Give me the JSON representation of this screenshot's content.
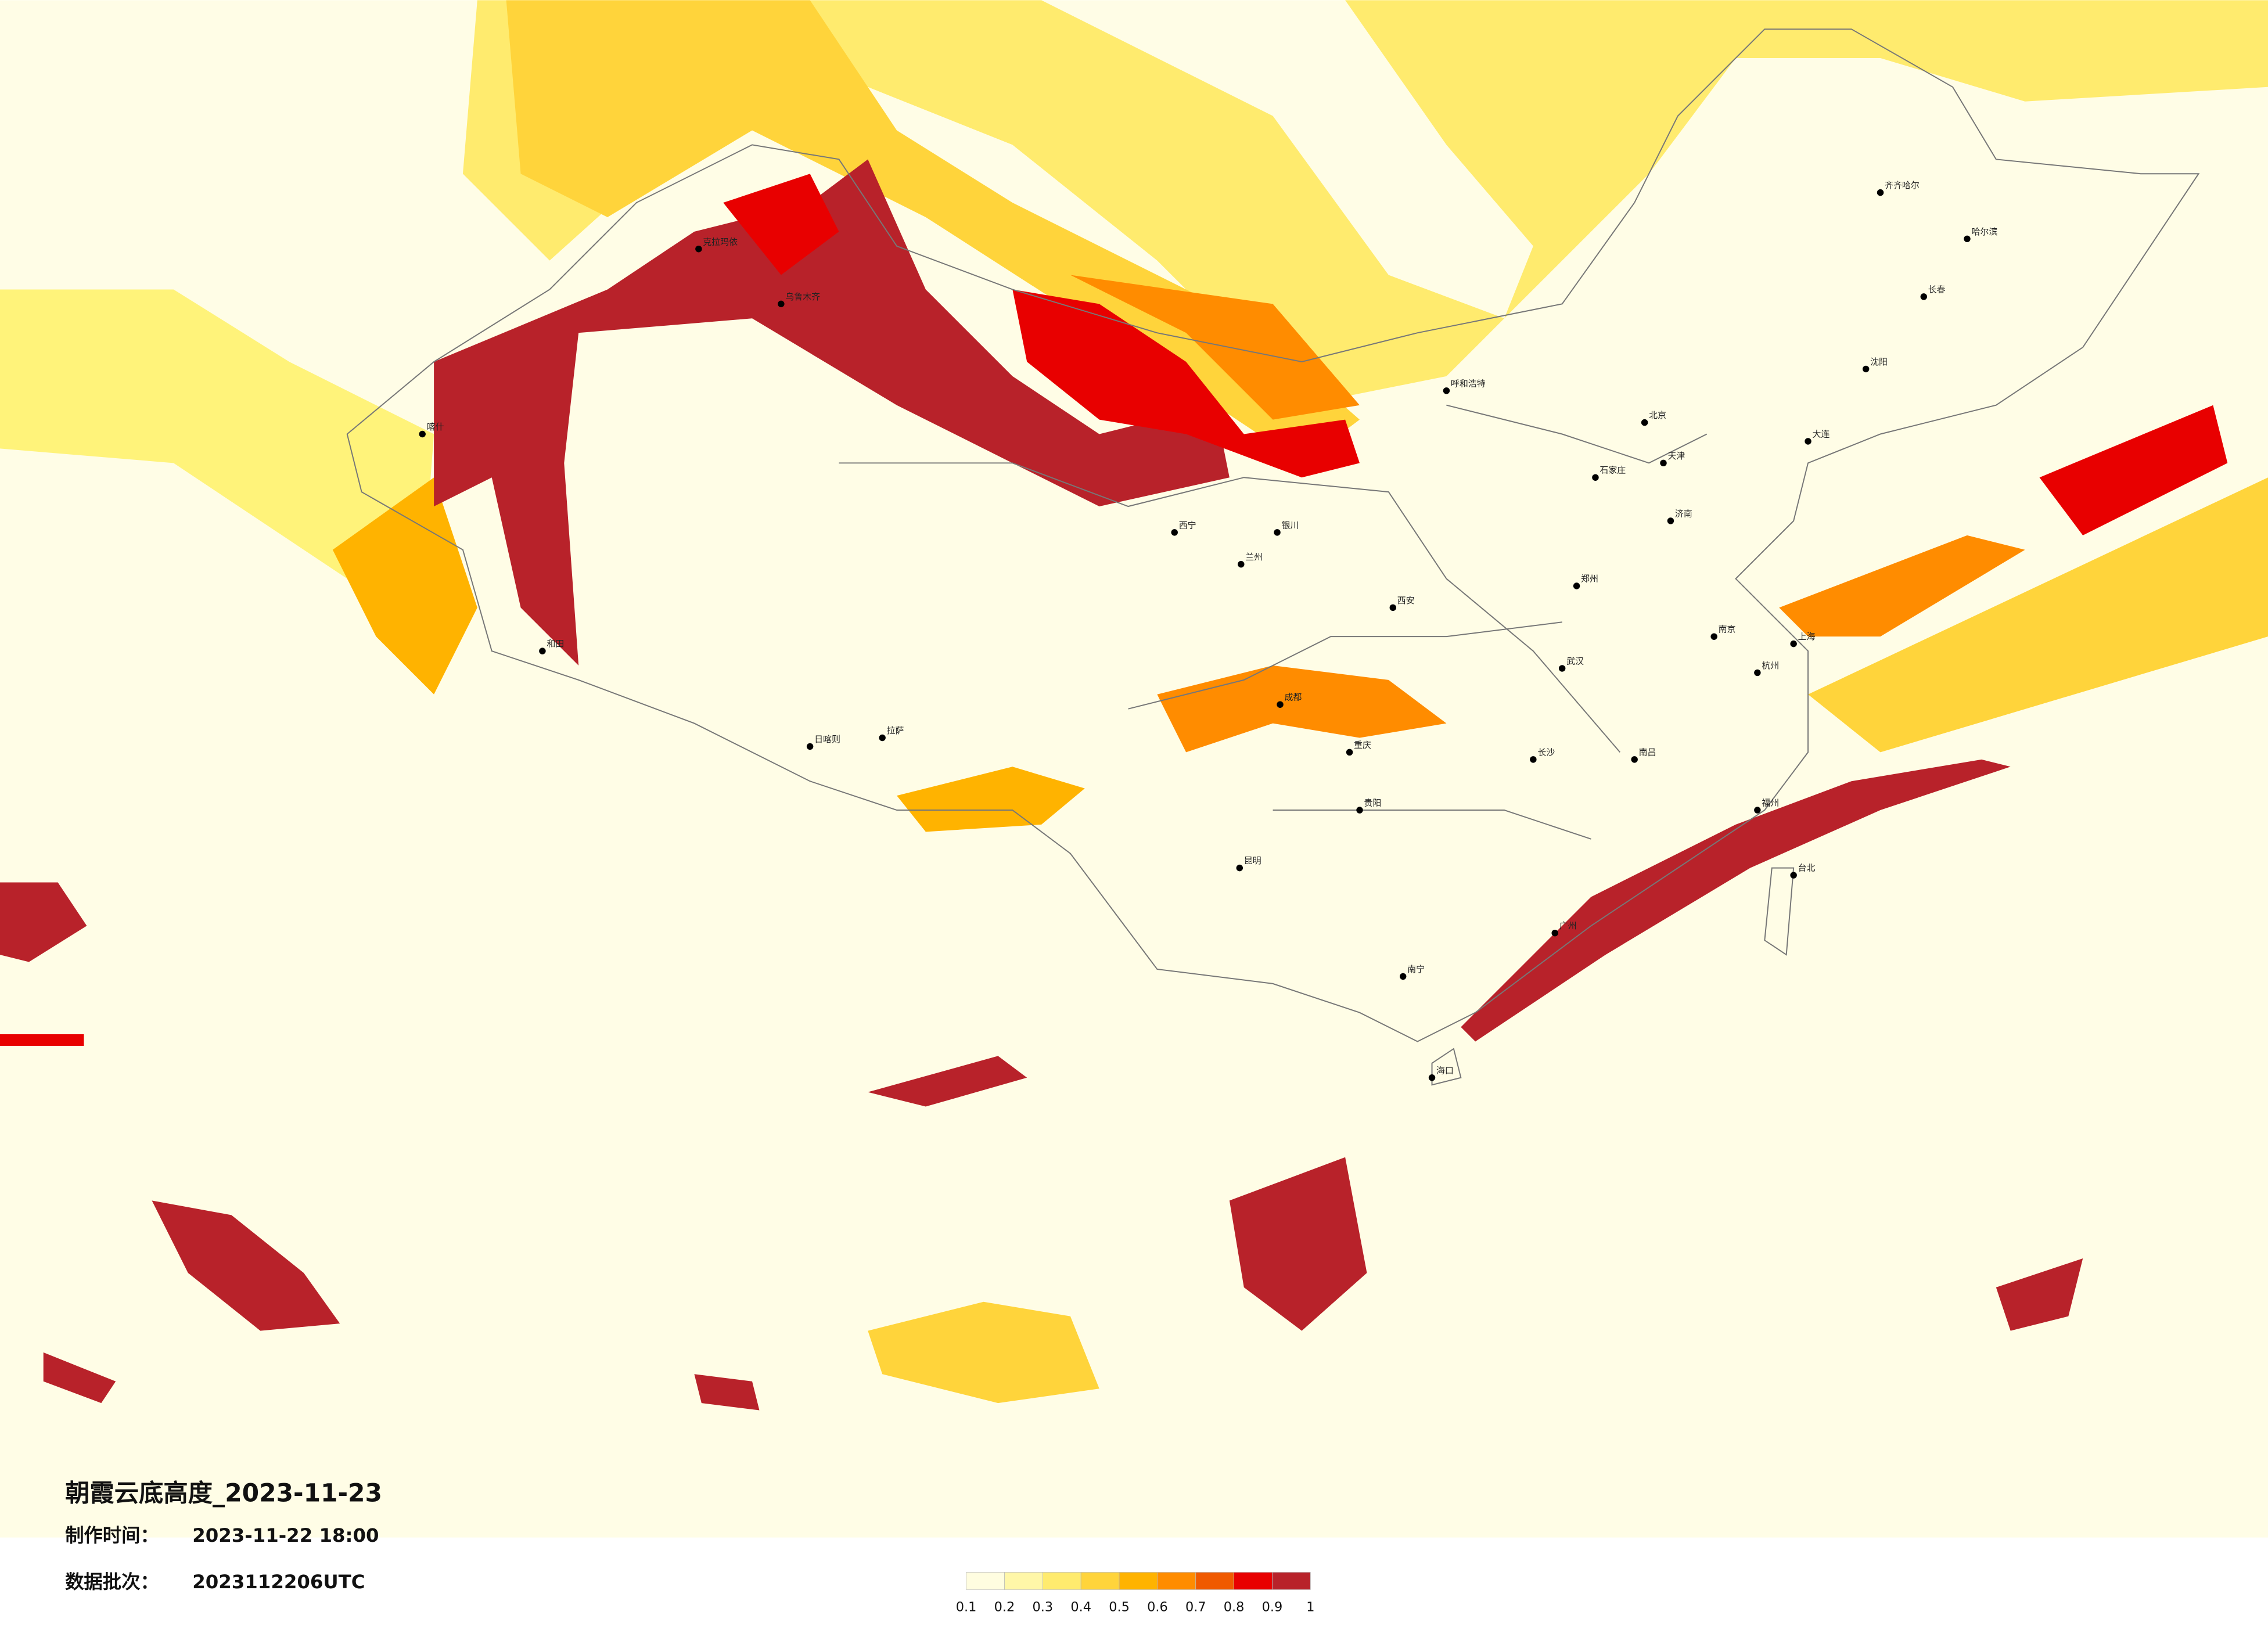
{
  "title": "朝霞云底高度_2023-11-23",
  "made_time": {
    "label": "制作时间：",
    "value": "2023-11-22 18:00"
  },
  "batch": {
    "label": "数据批次：",
    "value": "2023112206UTC"
  },
  "colorbar": {
    "colors": [
      "#fffde0",
      "#fff7a8",
      "#ffeb6e",
      "#ffd43b",
      "#ffb300",
      "#ff8c00",
      "#f05a00",
      "#e80000",
      "#b8222a"
    ],
    "ticks": [
      0.1,
      0.2,
      0.3,
      0.4,
      0.5,
      0.6,
      0.7,
      0.8,
      0.9,
      1
    ]
  },
  "cities": [
    "克拉玛依",
    "乌鲁木齐",
    "喀什",
    "和田",
    "拉萨",
    "日喀则",
    "西宁",
    "兰州",
    "银川",
    "呼和浩特",
    "北京",
    "天津",
    "石家庄",
    "济南",
    "郑州",
    "西安",
    "成都",
    "重庆",
    "武汉",
    "长沙",
    "南昌",
    "南京",
    "杭州",
    "上海",
    "福州",
    "广州",
    "南宁",
    "昆明",
    "贵阳",
    "海口",
    "台北",
    "哈尔滨",
    "长春",
    "沈阳",
    "大连",
    "齐齐哈尔"
  ]
}
